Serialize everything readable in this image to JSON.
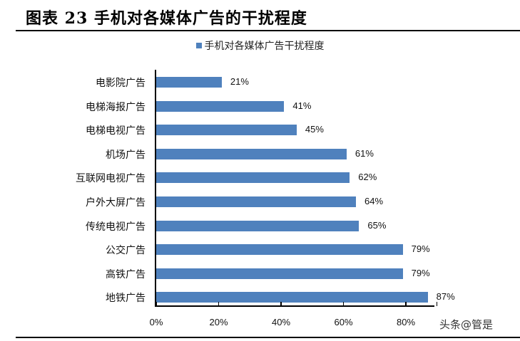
{
  "header": {
    "title": "图表 23 手机对各媒体广告的干扰程度"
  },
  "watermark": "头条@管是",
  "chart_data": {
    "type": "bar",
    "orientation": "horizontal",
    "title": "",
    "legend": [
      "手机对各媒体广告干扰程度"
    ],
    "legend_position": "top",
    "categories": [
      "电影院广告",
      "电梯海报广告",
      "电梯电视广告",
      "机场广告",
      "互联网电视广告",
      "户外大屏广告",
      "传统电视广告",
      "公交广告",
      "高铁广告",
      "地铁广告"
    ],
    "series": [
      {
        "name": "手机对各媒体广告干扰程度",
        "values": [
          21,
          41,
          45,
          61,
          62,
          64,
          65,
          79,
          79,
          87
        ],
        "color": "#4f81bd"
      }
    ],
    "value_labels": [
      "21%",
      "41%",
      "45%",
      "61%",
      "62%",
      "64%",
      "65%",
      "79%",
      "79%",
      "87%"
    ],
    "xlabel": "",
    "ylabel": "",
    "xlim": [
      0,
      90
    ],
    "x_ticks": [
      "0%",
      "20%",
      "40%",
      "60%",
      "80%"
    ],
    "grid": false
  }
}
